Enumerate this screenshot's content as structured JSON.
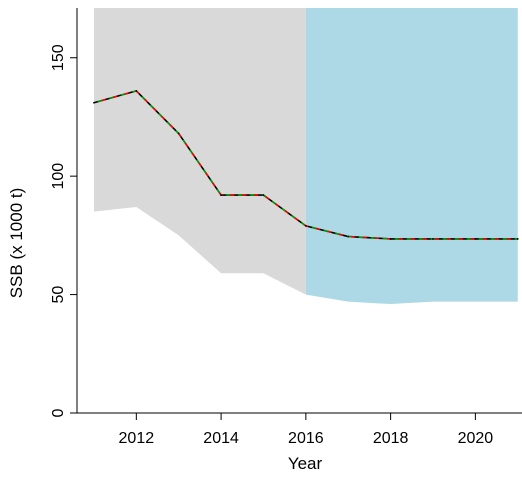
{
  "chart_data": {
    "type": "line",
    "title": "",
    "xlabel": "Year",
    "ylabel": "SSB (x 1000 t)",
    "xlim": [
      2010.6,
      2021.1
    ],
    "ylim": [
      0,
      171
    ],
    "x_ticks": [
      2012,
      2014,
      2016,
      2018,
      2020
    ],
    "x_tick_labels": [
      "2012",
      "2014",
      "2016",
      "2018",
      "2020"
    ],
    "y_ticks": [
      0,
      50,
      100,
      150
    ],
    "y_tick_labels": [
      "0",
      "50",
      "100",
      "150"
    ],
    "grid": false,
    "legend": "none",
    "historical_band": {
      "x": [
        2011,
        2012,
        2013,
        2014,
        2015,
        2016
      ],
      "upper": [
        171,
        171,
        171,
        171,
        171,
        171
      ],
      "lower": [
        85,
        87,
        75,
        59,
        59,
        50
      ],
      "color": "#d9d9d9"
    },
    "forecast_band": {
      "x": [
        2016,
        2017,
        2018,
        2019,
        2020,
        2021
      ],
      "upper": [
        171,
        171,
        171,
        171,
        171,
        171
      ],
      "lower": [
        50,
        47,
        46,
        47,
        47,
        47
      ],
      "color": "#add8e6"
    },
    "series": [
      {
        "x": [
          2011,
          2012,
          2013,
          2014,
          2015,
          2016,
          2017,
          2018,
          2019,
          2020,
          2021
        ],
        "values": [
          131,
          136,
          118,
          92,
          92,
          79,
          74.5,
          73.5,
          73.5,
          73.5,
          73.5
        ],
        "colors": [
          "#000000",
          "#ff0000",
          "#00a000"
        ]
      }
    ]
  }
}
